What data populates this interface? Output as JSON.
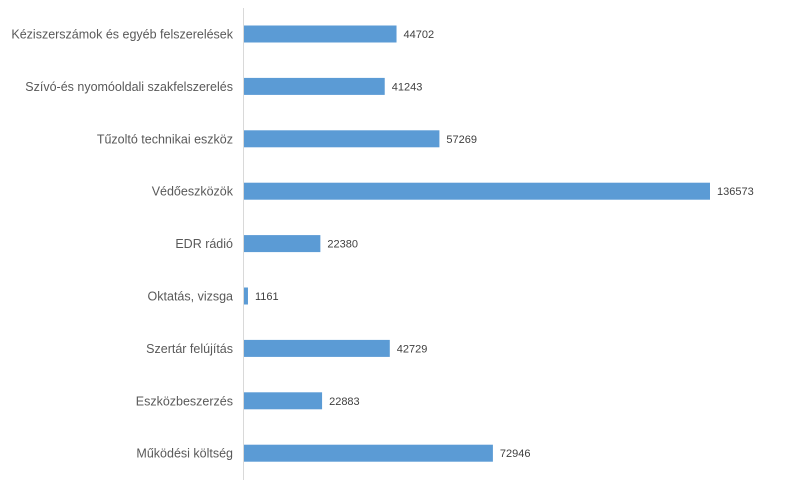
{
  "chart_data": {
    "type": "bar",
    "orientation": "horizontal",
    "categories": [
      "Kéziszerszámok és egyéb felszerelések",
      "Szívó-és nyomóoldali szakfelszerelés",
      "Tűzoltó technikai eszköz",
      "Védőeszközök",
      "EDR rádió",
      "Oktatás, vizsga",
      "Szertár felújítás",
      "Eszközbeszerzés",
      "Működési költség"
    ],
    "values": [
      44702,
      41243,
      57269,
      136573,
      22380,
      1161,
      42729,
      22883,
      72946
    ],
    "title": "",
    "xlabel": "",
    "ylabel": "",
    "xlim": [
      0,
      136573
    ],
    "grid": false,
    "legend": "none",
    "data_labels": true,
    "colors": {
      "bar": "#5b9bd5",
      "axis": "#d9d9d9",
      "label": "#595959"
    }
  }
}
